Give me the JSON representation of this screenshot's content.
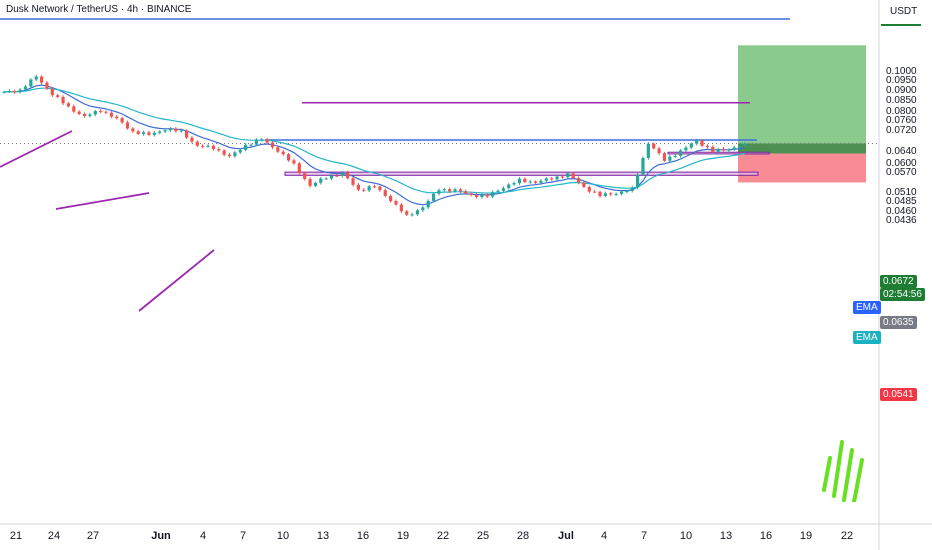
{
  "header": {
    "title": "Dusk Network / TetherUS · 4h · BINANCE",
    "currency": "USDT"
  },
  "price_axis": {
    "ticks": [
      "0.1000",
      "0.0950",
      "0.0900",
      "0.0850",
      "0.0800",
      "0.0760",
      "0.0720",
      "0.0640",
      "0.0600",
      "0.0570",
      "0.0510",
      "0.0485",
      "0.0460",
      "0.0436"
    ]
  },
  "time_axis": {
    "ticks": [
      "21",
      "24",
      "27",
      "Jun",
      "4",
      "7",
      "10",
      "13",
      "16",
      "19",
      "22",
      "25",
      "28",
      "Jul",
      "4",
      "7",
      "10",
      "13",
      "16",
      "19",
      "22"
    ]
  },
  "tags": {
    "price": "0.0672",
    "countdown": "02:54:56",
    "ema_price": "0.0635",
    "stop": "0.0541",
    "ema_label_1": "EMA",
    "ema_label_2": "EMA"
  },
  "colors": {
    "up": "#26a69a",
    "down": "#ef5350",
    "ema_fast": "#3f6bd6",
    "ema_slow": "#24b6c9",
    "resistance": "#3d6fd8",
    "trendline": "#9c27b0",
    "target_zone": "#4caf50",
    "stop_zone": "#f44d5a",
    "price_tag": "#1e7d32",
    "stop_tag": "#f23645",
    "ema_tag_blue": "#2962ff",
    "ema_tag_cyan": "#1ab2c2",
    "logo": "#66e021"
  },
  "chart_data": {
    "type": "candlestick",
    "symbol": "Dusk Network / TetherUS",
    "timeframe": "4h",
    "exchange": "BINANCE",
    "y_axis_ticks": [
      0.1,
      0.095,
      0.09,
      0.085,
      0.08,
      0.076,
      0.072,
      0.064,
      0.06,
      0.057,
      0.051,
      0.0485,
      0.046,
      0.0436
    ],
    "x_axis_ticks": [
      "21",
      "24",
      "27",
      "Jun",
      "4",
      "7",
      "10",
      "13",
      "16",
      "19",
      "22",
      "25",
      "28",
      "Jul",
      "4",
      "7",
      "10",
      "13",
      "16",
      "19",
      "22"
    ],
    "scale": "log",
    "current_price": 0.0672,
    "ema_value": 0.0635,
    "stop_level": 0.0541,
    "target_level": 0.116,
    "key_levels": {
      "resistance": 0.0685,
      "horizontal_target": 0.0843,
      "support_zone": [
        0.0563,
        0.0573
      ],
      "retest_zone": [
        0.0634,
        0.064
      ]
    },
    "price_path": [
      [
        0,
        0.0892
      ],
      [
        3,
        0.0905
      ],
      [
        6,
        0.0975
      ],
      [
        9,
        0.0884
      ],
      [
        12,
        0.0822
      ],
      [
        15,
        0.078
      ],
      [
        18,
        0.0809
      ],
      [
        21,
        0.077
      ],
      [
        24,
        0.0718
      ],
      [
        27,
        0.0705
      ],
      [
        30,
        0.0728
      ],
      [
        33,
        0.0718
      ],
      [
        36,
        0.0662
      ],
      [
        39,
        0.0657
      ],
      [
        42,
        0.0623
      ],
      [
        45,
        0.0666
      ],
      [
        48,
        0.0688
      ],
      [
        51,
        0.0646
      ],
      [
        54,
        0.0597
      ],
      [
        57,
        0.0531
      ],
      [
        60,
        0.0557
      ],
      [
        63,
        0.0569
      ],
      [
        66,
        0.0519
      ],
      [
        69,
        0.0529
      ],
      [
        72,
        0.0491
      ],
      [
        75,
        0.0448
      ],
      [
        78,
        0.0472
      ],
      [
        81,
        0.0521
      ],
      [
        84,
        0.0518
      ],
      [
        87,
        0.0505
      ],
      [
        90,
        0.0501
      ],
      [
        93,
        0.0527
      ],
      [
        96,
        0.0547
      ],
      [
        99,
        0.0542
      ],
      [
        102,
        0.0553
      ],
      [
        105,
        0.0567
      ],
      [
        108,
        0.0527
      ],
      [
        111,
        0.0503
      ],
      [
        114,
        0.051
      ],
      [
        117,
        0.0521
      ],
      [
        120,
        0.0675
      ],
      [
        123,
        0.0612
      ],
      [
        126,
        0.0644
      ],
      [
        129,
        0.0682
      ],
      [
        132,
        0.0644
      ],
      [
        135,
        0.0651
      ],
      [
        138,
        0.0672
      ]
    ]
  }
}
